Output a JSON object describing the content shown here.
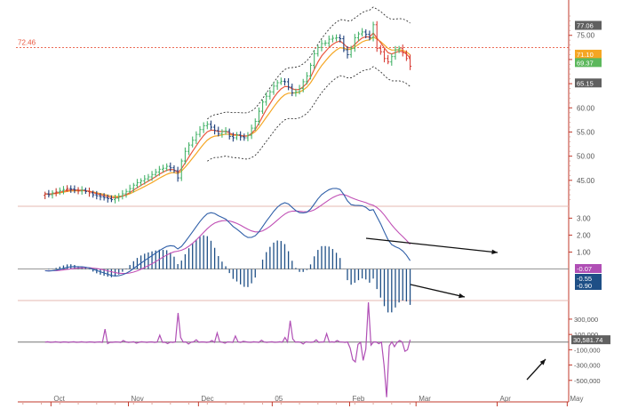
{
  "chart_data": [
    {
      "panel": "price",
      "type": "ohlc",
      "ylim": [
        40,
        79
      ],
      "y_ticks": [
        "75.00",
        "70.00",
        "65.00",
        "60.00",
        "55.00",
        "50.00",
        "45.00"
      ],
      "y_tick_values": [
        75,
        70,
        65,
        60,
        55,
        50,
        45
      ],
      "reference_line": {
        "label": "72.46",
        "value": 72.46,
        "color": "#e9573f"
      },
      "price_labels": [
        {
          "text": "77.06",
          "value": 77.06,
          "color": "#606060"
        },
        {
          "text": "71.10",
          "value": 71.1,
          "color": "#f5a623"
        },
        {
          "text": "69.37",
          "value": 69.37,
          "color": "#5cb85c"
        },
        {
          "text": "65.15",
          "value": 65.15,
          "color": "#606060"
        }
      ],
      "series": [
        {
          "name": "close",
          "values": [
            42.2,
            42.0,
            42.4,
            42.6,
            42.9,
            43.1,
            43.3,
            43.2,
            43.0,
            42.8,
            43.0,
            42.7,
            42.4,
            42.0,
            41.8,
            41.6,
            41.4,
            41.2,
            41.0,
            41.3,
            41.7,
            42.2,
            42.7,
            43.3,
            44.0,
            44.5,
            44.9,
            45.3,
            45.7,
            46.2,
            46.7,
            47.3,
            47.5,
            47.9,
            47.6,
            47.0,
            45.5,
            49.0,
            51.0,
            52.3,
            53.3,
            54.5,
            55.5,
            56.3,
            56.6,
            56.0,
            55.3,
            54.6,
            55.1,
            55.2,
            54.1,
            53.8,
            54.4,
            54.0,
            53.8,
            54.3,
            55.8,
            57.2,
            59.3,
            61.2,
            62.4,
            63.3,
            64.5,
            65.2,
            65.5,
            65.4,
            64.3,
            63.1,
            63.3,
            64.0,
            65.4,
            66.6,
            68.8,
            71.2,
            72.5,
            73.3,
            73.4,
            74.2,
            74.4,
            74.5,
            74.3,
            72.0,
            71.0,
            72.3,
            74.5,
            75.3,
            75.7,
            75.2,
            74.5,
            77.2,
            72.3,
            71.6,
            70.2,
            69.5,
            70.6,
            72.0,
            72.3,
            71.4,
            70.2,
            68.6
          ]
        },
        {
          "name": "ema_fast",
          "color": "#e9573f"
        },
        {
          "name": "ema_slow",
          "color": "#f5a623"
        },
        {
          "name": "band_upper",
          "color": "#333333"
        },
        {
          "name": "band_lower",
          "color": "#333333"
        }
      ]
    },
    {
      "panel": "macd",
      "type": "line+bar",
      "ylim": [
        -1.7,
        3.7
      ],
      "y_ticks": [
        "3.00",
        "2.00",
        "1.00"
      ],
      "y_tick_values": [
        3,
        2,
        1
      ],
      "labels": [
        {
          "text": "-0.07",
          "value": -0.07,
          "color": "#b04fb5"
        },
        {
          "text": "-0.55",
          "value": -0.55,
          "color": "#1e4f86"
        },
        {
          "text": "-0.90",
          "value": -0.9,
          "color": "#1e4f86"
        }
      ],
      "series": [
        {
          "name": "macd",
          "color": "#2f5fa8"
        },
        {
          "name": "signal",
          "color": "#c04fb5"
        },
        {
          "name": "histogram",
          "color": "#1e4f86"
        }
      ],
      "annotations": [
        "arrow-macd-divergence",
        "arrow-histogram-divergence"
      ]
    },
    {
      "panel": "volume_oscillator",
      "type": "line",
      "ylim": [
        -700000,
        520000
      ],
      "y_ticks": [
        "300,000",
        "100,000",
        "-100,000",
        "-300,000",
        "-500,000"
      ],
      "y_tick_values": [
        300000,
        100000,
        -100000,
        -300000,
        -500000
      ],
      "labels": [
        {
          "text": "30,581.74",
          "value": 30581.74,
          "color": "#606060"
        }
      ],
      "series": [
        {
          "name": "oscillator",
          "color": "#b04fb5"
        }
      ],
      "annotations": [
        "arrow-oscillator-rising"
      ]
    }
  ],
  "x_axis": {
    "labels": [
      "Oct",
      "Nov",
      "Dec",
      "05",
      "Feb",
      "Mar",
      "Apr",
      "May"
    ],
    "positions": [
      1.6,
      22.6,
      41.6,
      61.6,
      82.6,
      100.6,
      122.6,
      141.6
    ],
    "range": [
      -7.4,
      142.0
    ]
  }
}
